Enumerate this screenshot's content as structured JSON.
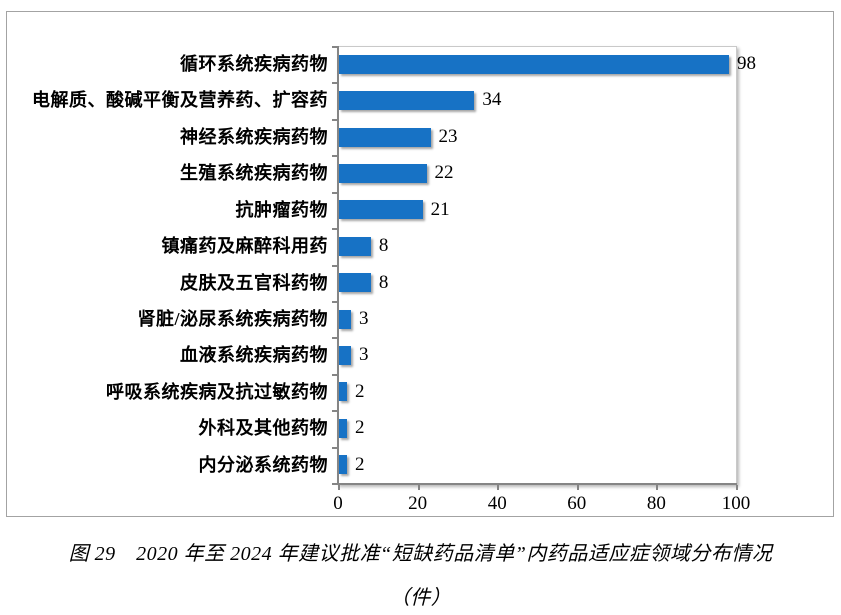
{
  "figure": {
    "caption_line1": "图 29　2020 年至 2024 年建议批准“短缺药品清单”内药品适应症领域分布情况",
    "caption_line2": "（件）"
  },
  "colors": {
    "bar": "#1772c5",
    "axis": "#858585",
    "frame": "#a3a3a3",
    "plot_border": "#c9c9c9",
    "text": "#000000"
  },
  "chart_data": {
    "type": "bar",
    "orientation": "horizontal",
    "title": "",
    "xlabel": "",
    "ylabel": "",
    "grid": false,
    "legend": false,
    "data_labels": true,
    "xlim": [
      0,
      100
    ],
    "x_ticks": [
      "0",
      "20",
      "40",
      "60",
      "80",
      "100"
    ],
    "categories": [
      "循环系统疾病药物",
      "电解质、酸碱平衡及营养药、扩容药",
      "神经系统疾病药物",
      "生殖系统疾病药物",
      "抗肿瘤药物",
      "镇痛药及麻醉科用药",
      "皮肤及五官科药物",
      "肾脏/泌尿系统疾病药物",
      "血液系统疾病药物",
      "呼吸系统疾病及抗过敏药物",
      "外科及其他药物",
      "内分泌系统药物"
    ],
    "values": [
      98,
      34,
      23,
      22,
      21,
      8,
      8,
      3,
      3,
      2,
      2,
      2
    ]
  }
}
